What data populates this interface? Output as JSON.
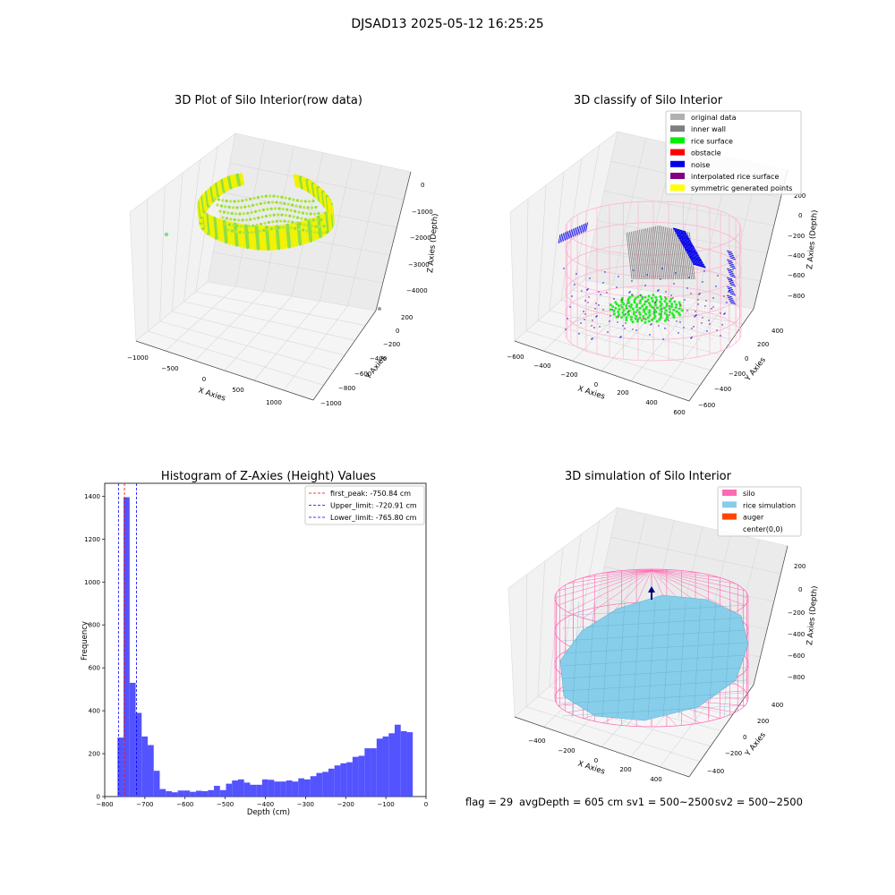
{
  "suptitle": "DJSAD13 2025-05-12 16:25:25",
  "footer": {
    "flag": "flag = 29",
    "avg_depth": "avgDepth = 605 cm",
    "sv1": "sv1 = 500~2500",
    "sv2": "sv2 = 500~2500"
  },
  "colors": {
    "yellow": "#f2f200",
    "lime": "#90e040",
    "green": "#22ee22",
    "gray": "#7f7f7f",
    "lightgray": "#b0b0b0",
    "blue": "#0000ee",
    "pink": "#ff69b4",
    "skyblue": "#87ceeb",
    "hist": "#4a4aff"
  },
  "chart_data": [
    {
      "type": "scatter",
      "title": "3D Plot of Silo Interior(row data)",
      "xlabel": "X Axies",
      "ylabel": "Y Axies",
      "zlabel": "Z Axies (Depth)",
      "xticks": [
        "−1000",
        "−500",
        "0",
        "500",
        "1000"
      ],
      "yticks": [
        "200",
        "0",
        "−200",
        "−400",
        "−600",
        "−800",
        "−1000"
      ],
      "zticks": [
        "0",
        "−1000",
        "−2000",
        "−3000",
        "−4000"
      ],
      "xlim": [
        -1100,
        1100
      ],
      "ylim": [
        -1000,
        200
      ],
      "zlim": [
        -4500,
        0
      ],
      "description_series": [
        "raw point cloud colored by depth (yellow to green)"
      ]
    },
    {
      "type": "scatter",
      "title": "3D classify of Silo Interior",
      "xlabel": "X Axies",
      "ylabel": "Y Axies",
      "zlabel": "Z Axies (Depth)",
      "xticks": [
        "−600",
        "−400",
        "−200",
        "0",
        "200",
        "400",
        "600"
      ],
      "yticks": [
        "400",
        "200",
        "0",
        "−200",
        "−400",
        "−600"
      ],
      "zticks": [
        "200",
        "0",
        "−200",
        "−400",
        "−600",
        "−800"
      ],
      "xlim": [
        -650,
        650
      ],
      "ylim": [
        -650,
        500
      ],
      "zlim": [
        -850,
        250
      ],
      "legend": [
        {
          "label": "original data",
          "color": "#b0b0b0"
        },
        {
          "label": "inner wall",
          "color": "#7f7f7f"
        },
        {
          "label": "rice surface",
          "color": "#00ee00"
        },
        {
          "label": "obstacle",
          "color": "#ff0000"
        },
        {
          "label": "noise",
          "color": "#0000ee"
        },
        {
          "label": "interpolated rice surface",
          "color": "#800080"
        },
        {
          "label": "symmetric generated points",
          "color": "#ffff00"
        }
      ]
    },
    {
      "type": "bar",
      "title": "Histogram of Z-Axies (Height) Values",
      "xlabel": "Depth (cm)",
      "ylabel": "Frequency",
      "xlim": [
        -800,
        0
      ],
      "ylim": [
        0,
        1460
      ],
      "xticks": [
        -800,
        -700,
        -600,
        -500,
        -400,
        -300,
        -200,
        -100,
        0
      ],
      "yticks": [
        0,
        200,
        400,
        600,
        800,
        1000,
        1200,
        1400
      ],
      "bin_width": 15,
      "bins_start": [
        -768,
        -753,
        -738,
        -723,
        -708,
        -693,
        -678,
        -663,
        -648,
        -633,
        -618,
        -603,
        -588,
        -573,
        -558,
        -543,
        -528,
        -513,
        -498,
        -483,
        -468,
        -453,
        -438,
        -423,
        -408,
        -393,
        -378,
        -363,
        -348,
        -333,
        -318,
        -303,
        -288,
        -273,
        -258,
        -243,
        -228,
        -213,
        -198,
        -183,
        -168,
        -153,
        -138,
        -123,
        -108,
        -93,
        -78,
        -63,
        -48,
        -33
      ],
      "values": [
        275,
        1395,
        530,
        390,
        280,
        240,
        120,
        35,
        25,
        20,
        28,
        28,
        22,
        27,
        25,
        30,
        50,
        30,
        60,
        75,
        80,
        65,
        55,
        55,
        80,
        78,
        70,
        70,
        75,
        70,
        85,
        80,
        95,
        110,
        115,
        130,
        145,
        155,
        160,
        185,
        190,
        225,
        225,
        270,
        280,
        295,
        335,
        305,
        300,
        0
      ],
      "vlines": [
        {
          "label": "first_peak: -750.84 cm",
          "x": -750.84,
          "color": "#ff0000"
        },
        {
          "label": "Upper_limit: -720.91 cm",
          "x": -720.91,
          "color": "#0000ff"
        },
        {
          "label": "Lower_limit: -765.80 cm",
          "x": -765.8,
          "color": "#0000ff"
        }
      ]
    },
    {
      "type": "area",
      "title": "3D simulation of Silo Interior",
      "xlabel": "X Axies",
      "ylabel": "Y Axies",
      "zlabel": "Z Axies (Depth)",
      "xticks": [
        "−400",
        "−200",
        "0",
        "200",
        "400"
      ],
      "yticks": [
        "400",
        "200",
        "0",
        "−200",
        "−400"
      ],
      "zticks": [
        "200",
        "0",
        "−200",
        "−400",
        "−600",
        "−800"
      ],
      "xlim": [
        -500,
        500
      ],
      "ylim": [
        -500,
        500
      ],
      "zlim": [
        -850,
        250
      ],
      "legend": [
        {
          "label": "silo",
          "color": "#ff69b4"
        },
        {
          "label": "rice simulation",
          "color": "#87ceeb"
        },
        {
          "label": "auger",
          "color": "#ff4500"
        },
        {
          "label": "center(0,0)",
          "color": "#ffffff"
        }
      ]
    }
  ]
}
